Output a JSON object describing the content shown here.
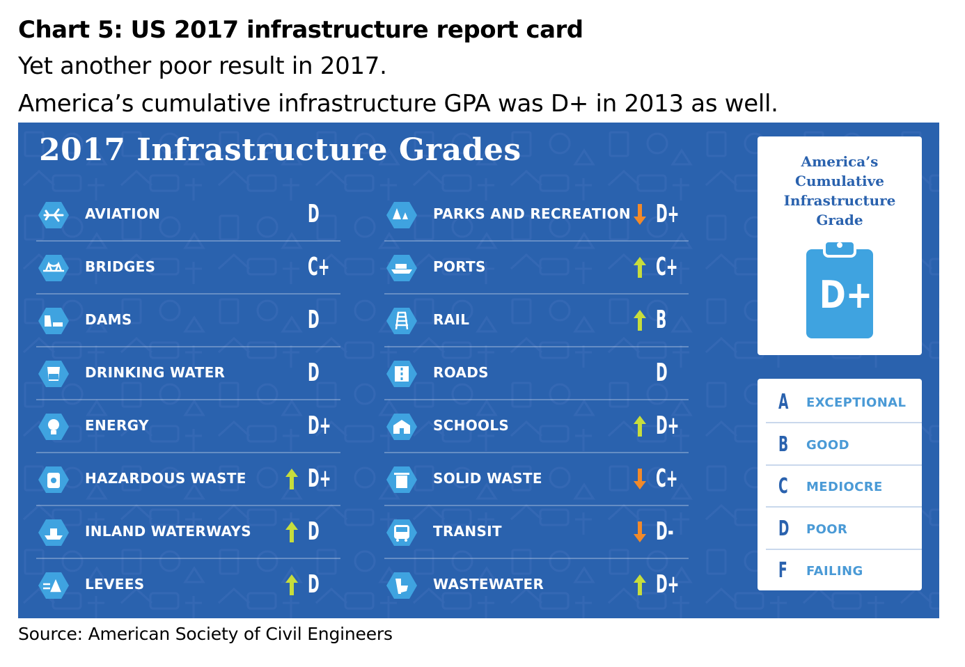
{
  "heading": {
    "title": "Chart 5: US 2017 infrastructure report card",
    "line1": "Yet another poor result in 2017.",
    "line2": "America’s cumulative infrastructure GPA was D+ in 2013 as well."
  },
  "panel": {
    "title": "2017 Infrastructure Grades",
    "colors": {
      "background": "#2a62ae",
      "hex": "#3fa3e0",
      "arrow_up": "#c7dd3c",
      "arrow_down": "#f28a2a"
    },
    "left_column": [
      {
        "label": "AVIATION",
        "grade": "D",
        "trend": "none",
        "icon": "airplane-icon"
      },
      {
        "label": "BRIDGES",
        "grade": "C+",
        "trend": "none",
        "icon": "bridge-icon"
      },
      {
        "label": "DAMS",
        "grade": "D",
        "trend": "none",
        "icon": "dam-icon"
      },
      {
        "label": "DRINKING WATER",
        "grade": "D",
        "trend": "none",
        "icon": "water-glass-icon"
      },
      {
        "label": "ENERGY",
        "grade": "D+",
        "trend": "none",
        "icon": "lightbulb-icon"
      },
      {
        "label": "HAZARDOUS WASTE",
        "grade": "D+",
        "trend": "up",
        "icon": "hazard-barrel-icon"
      },
      {
        "label": "INLAND WATERWAYS",
        "grade": "D",
        "trend": "up",
        "icon": "boat-icon"
      },
      {
        "label": "LEVEES",
        "grade": "D",
        "trend": "up",
        "icon": "levee-icon"
      }
    ],
    "right_column": [
      {
        "label": "PARKS AND RECREATION",
        "grade": "D+",
        "trend": "down",
        "icon": "trees-icon"
      },
      {
        "label": "PORTS",
        "grade": "C+",
        "trend": "up",
        "icon": "ship-icon"
      },
      {
        "label": "RAIL",
        "grade": "B",
        "trend": "up",
        "icon": "rail-icon"
      },
      {
        "label": "ROADS",
        "grade": "D",
        "trend": "none",
        "icon": "road-icon"
      },
      {
        "label": "SCHOOLS",
        "grade": "D+",
        "trend": "up",
        "icon": "school-icon"
      },
      {
        "label": "SOLID WASTE",
        "grade": "C+",
        "trend": "down",
        "icon": "trash-can-icon"
      },
      {
        "label": "TRANSIT",
        "grade": "D-",
        "trend": "down",
        "icon": "bus-icon"
      },
      {
        "label": "WASTEWATER",
        "grade": "D+",
        "trend": "up",
        "icon": "toilet-icon"
      }
    ]
  },
  "gpa_card": {
    "caption_lines": [
      "America’s",
      "Cumulative",
      "Infrastructure",
      "Grade"
    ],
    "grade": "D+",
    "icon": "clipboard-icon"
  },
  "legend": [
    {
      "letter": "A",
      "description": "EXCEPTIONAL"
    },
    {
      "letter": "B",
      "description": "GOOD"
    },
    {
      "letter": "C",
      "description": "MEDIOCRE"
    },
    {
      "letter": "D",
      "description": "POOR"
    },
    {
      "letter": "F",
      "description": "FAILING"
    }
  ],
  "source": "Source: American Society of Civil Engineers"
}
